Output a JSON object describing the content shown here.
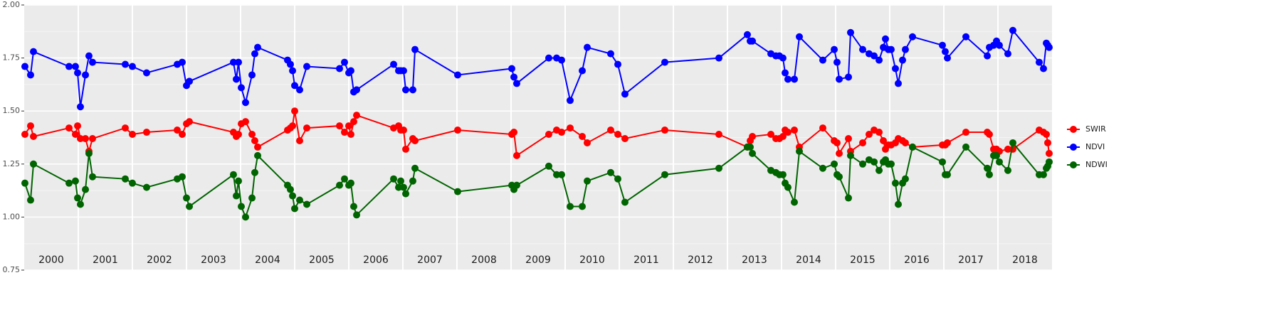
{
  "chart_data": {
    "type": "line",
    "x": [
      2000.013,
      2000.118,
      2000.171,
      2000.829,
      2000.947,
      2000.987,
      2001.039,
      2001.132,
      2001.197,
      2001.263,
      2001.868,
      2002.0,
      2002.263,
      2002.829,
      2002.921,
      2003.0,
      2003.053,
      2003.868,
      2003.921,
      2003.961,
      2004.013,
      2004.092,
      2004.211,
      2004.263,
      2004.316,
      2004.868,
      2004.921,
      2004.961,
      2005.0,
      2005.092,
      2005.224,
      2005.829,
      2005.921,
      2006.0,
      2006.039,
      2006.092,
      2006.145,
      2006.829,
      2006.921,
      2006.961,
      2007.013,
      2007.053,
      2007.184,
      2007.224,
      2008.013,
      2009.013,
      2009.053,
      2009.105,
      2009.697,
      2009.842,
      2009.934,
      2010.092,
      2010.316,
      2010.408,
      2010.842,
      2010.974,
      2011.105,
      2011.842,
      2012.842,
      2013.368,
      2013.421,
      2013.461,
      2013.803,
      2013.895,
      2013.961,
      2014.026,
      2014.066,
      2014.118,
      2014.237,
      2014.329,
      2014.763,
      2014.974,
      2015.026,
      2015.066,
      2015.237,
      2015.276,
      2015.5,
      2015.618,
      2015.711,
      2015.803,
      2015.882,
      2015.921,
      2015.974,
      2016.026,
      2016.105,
      2016.158,
      2016.237,
      2016.289,
      2016.421,
      2016.974,
      2017.026,
      2017.066,
      2017.408,
      2017.803,
      2017.842,
      2017.921,
      2017.974,
      2018.026,
      2018.184,
      2018.276,
      2018.763,
      2018.842,
      2018.895,
      2018.921,
      2018.947
    ],
    "series": [
      {
        "name": "SWIR",
        "color": "#ff0000",
        "values": [
          1.39,
          1.43,
          1.38,
          1.42,
          1.39,
          1.43,
          1.37,
          1.37,
          1.31,
          1.37,
          1.42,
          1.39,
          1.4,
          1.41,
          1.39,
          1.44,
          1.45,
          1.4,
          1.38,
          1.39,
          1.44,
          1.45,
          1.39,
          1.36,
          1.33,
          1.41,
          1.42,
          1.43,
          1.5,
          1.36,
          1.42,
          1.43,
          1.4,
          1.43,
          1.39,
          1.45,
          1.48,
          1.42,
          1.43,
          1.41,
          1.41,
          1.32,
          1.37,
          1.36,
          1.41,
          1.39,
          1.4,
          1.29,
          1.39,
          1.41,
          1.4,
          1.42,
          1.38,
          1.35,
          1.41,
          1.39,
          1.37,
          1.41,
          1.39,
          1.33,
          1.36,
          1.38,
          1.39,
          1.37,
          1.37,
          1.38,
          1.41,
          1.4,
          1.41,
          1.33,
          1.42,
          1.36,
          1.35,
          1.3,
          1.37,
          1.31,
          1.35,
          1.39,
          1.41,
          1.4,
          1.36,
          1.32,
          1.34,
          1.34,
          1.35,
          1.37,
          1.36,
          1.35,
          1.33,
          1.34,
          1.34,
          1.35,
          1.4,
          1.4,
          1.39,
          1.32,
          1.32,
          1.31,
          1.32,
          1.32,
          1.41,
          1.4,
          1.39,
          1.35,
          1.3
        ]
      },
      {
        "name": "NDVI",
        "color": "#0000ff",
        "values": [
          1.71,
          1.67,
          1.78,
          1.71,
          1.71,
          1.68,
          1.52,
          1.67,
          1.76,
          1.73,
          1.72,
          1.71,
          1.68,
          1.72,
          1.73,
          1.62,
          1.64,
          1.73,
          1.65,
          1.73,
          1.61,
          1.54,
          1.67,
          1.77,
          1.8,
          1.74,
          1.72,
          1.69,
          1.62,
          1.6,
          1.71,
          1.7,
          1.73,
          1.68,
          1.69,
          1.59,
          1.6,
          1.72,
          1.69,
          1.69,
          1.69,
          1.6,
          1.6,
          1.79,
          1.67,
          1.7,
          1.66,
          1.63,
          1.75,
          1.75,
          1.74,
          1.55,
          1.69,
          1.8,
          1.77,
          1.72,
          1.58,
          1.73,
          1.75,
          1.86,
          1.83,
          1.83,
          1.77,
          1.76,
          1.76,
          1.75,
          1.68,
          1.65,
          1.65,
          1.85,
          1.74,
          1.79,
          1.73,
          1.65,
          1.66,
          1.87,
          1.79,
          1.77,
          1.76,
          1.74,
          1.8,
          1.84,
          1.79,
          1.79,
          1.7,
          1.63,
          1.74,
          1.79,
          1.85,
          1.81,
          1.78,
          1.75,
          1.85,
          1.76,
          1.8,
          1.81,
          1.83,
          1.81,
          1.77,
          1.88,
          1.73,
          1.7,
          1.82,
          1.81,
          1.8
        ]
      },
      {
        "name": "NDWI",
        "color": "#006400",
        "values": [
          1.16,
          1.08,
          1.25,
          1.16,
          1.17,
          1.09,
          1.06,
          1.13,
          1.3,
          1.19,
          1.18,
          1.16,
          1.14,
          1.18,
          1.19,
          1.09,
          1.05,
          1.2,
          1.1,
          1.17,
          1.05,
          1.0,
          1.09,
          1.21,
          1.29,
          1.15,
          1.13,
          1.1,
          1.04,
          1.08,
          1.06,
          1.15,
          1.18,
          1.15,
          1.16,
          1.05,
          1.01,
          1.18,
          1.14,
          1.17,
          1.14,
          1.11,
          1.17,
          1.23,
          1.12,
          1.15,
          1.13,
          1.15,
          1.24,
          1.2,
          1.2,
          1.05,
          1.05,
          1.17,
          1.21,
          1.18,
          1.07,
          1.2,
          1.23,
          1.33,
          1.33,
          1.3,
          1.22,
          1.21,
          1.2,
          1.2,
          1.16,
          1.14,
          1.07,
          1.31,
          1.23,
          1.25,
          1.2,
          1.19,
          1.09,
          1.29,
          1.25,
          1.27,
          1.26,
          1.22,
          1.26,
          1.27,
          1.25,
          1.25,
          1.16,
          1.06,
          1.16,
          1.18,
          1.33,
          1.26,
          1.2,
          1.2,
          1.33,
          1.23,
          1.2,
          1.29,
          1.29,
          1.26,
          1.22,
          1.35,
          1.2,
          1.2,
          1.23,
          1.24,
          1.26
        ]
      }
    ],
    "xlim": [
      2000,
      2019
    ],
    "xgrid": [
      2001,
      2002,
      2003,
      2004,
      2005,
      2006,
      2007,
      2008,
      2009,
      2010,
      2011,
      2012,
      2013,
      2014,
      2015,
      2016,
      2017,
      2018
    ],
    "year_labels": [
      {
        "value": 2000.5,
        "label": "2000"
      },
      {
        "value": 2001.5,
        "label": "2001"
      },
      {
        "value": 2002.5,
        "label": "2002"
      },
      {
        "value": 2003.5,
        "label": "2003"
      },
      {
        "value": 2004.5,
        "label": "2004"
      },
      {
        "value": 2005.5,
        "label": "2005"
      },
      {
        "value": 2006.5,
        "label": "2006"
      },
      {
        "value": 2007.5,
        "label": "2007"
      },
      {
        "value": 2008.5,
        "label": "2008"
      },
      {
        "value": 2009.5,
        "label": "2009"
      },
      {
        "value": 2010.5,
        "label": "2010"
      },
      {
        "value": 2011.5,
        "label": "2011"
      },
      {
        "value": 2012.5,
        "label": "2012"
      },
      {
        "value": 2013.5,
        "label": "2013"
      },
      {
        "value": 2014.5,
        "label": "2014"
      },
      {
        "value": 2015.5,
        "label": "2015"
      },
      {
        "value": 2016.5,
        "label": "2016"
      },
      {
        "value": 2017.5,
        "label": "2017"
      },
      {
        "value": 2018.5,
        "label": "2018"
      }
    ],
    "ylim": [
      0.75,
      2.0
    ],
    "yticks": [
      {
        "value": 0.75,
        "label": "0.75"
      },
      {
        "value": 1.0,
        "label": "1.00"
      },
      {
        "value": 1.25,
        "label": "1.25"
      },
      {
        "value": 1.5,
        "label": "1.50"
      },
      {
        "value": 1.75,
        "label": "1.75"
      },
      {
        "value": 2.0,
        "label": "2.00"
      }
    ],
    "yminor": [
      0.875,
      1.125,
      1.375,
      1.625,
      1.875
    ],
    "grid": true,
    "legend": "right"
  }
}
